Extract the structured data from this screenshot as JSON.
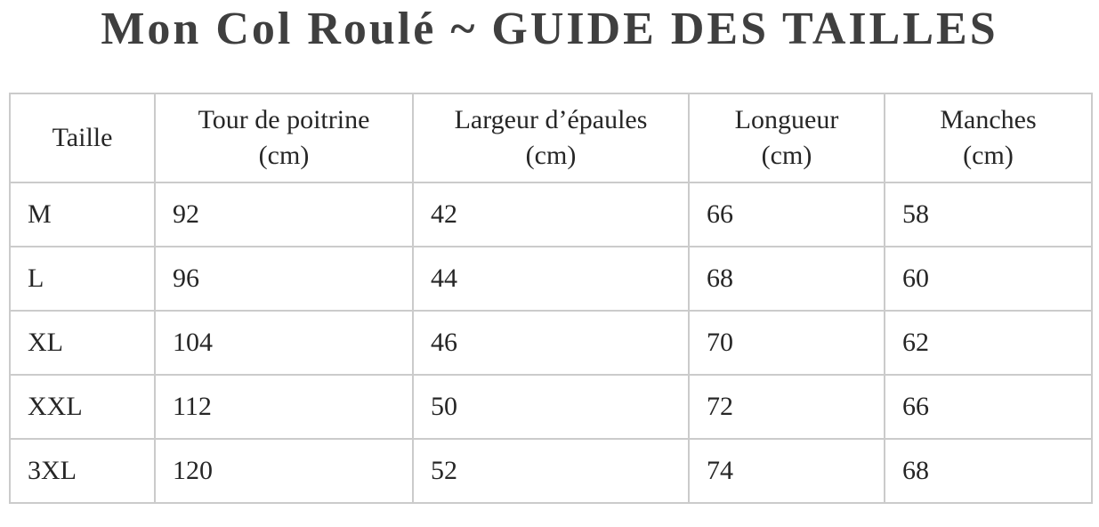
{
  "page_title": "Mon Col Roulé ~ GUIDE DES TAILLES",
  "colors": {
    "title_text": "#3f3f3f",
    "table_text": "#262626",
    "table_border": "#cbcbcb",
    "background": "#ffffff"
  },
  "size_table": {
    "columns": [
      {
        "id": "taille",
        "label": "Taille",
        "unit": ""
      },
      {
        "id": "tour-de-poitrine",
        "label": "Tour de poitrine",
        "unit": "(cm)"
      },
      {
        "id": "largeur-epaules",
        "label": "Largeur d’épaules",
        "unit": "(cm)"
      },
      {
        "id": "longueur",
        "label": "Longueur",
        "unit": "(cm)"
      },
      {
        "id": "manches",
        "label": "Manches",
        "unit": "(cm)"
      }
    ],
    "rows": [
      {
        "cells": [
          "M",
          "92",
          "42",
          "66",
          "58"
        ]
      },
      {
        "cells": [
          "L",
          "96",
          "44",
          "68",
          "60"
        ]
      },
      {
        "cells": [
          "XL",
          "104",
          "46",
          "70",
          "62"
        ]
      },
      {
        "cells": [
          "XXL",
          "112",
          "50",
          "72",
          "66"
        ]
      },
      {
        "cells": [
          "3XL",
          "120",
          "52",
          "74",
          "68"
        ]
      }
    ]
  }
}
